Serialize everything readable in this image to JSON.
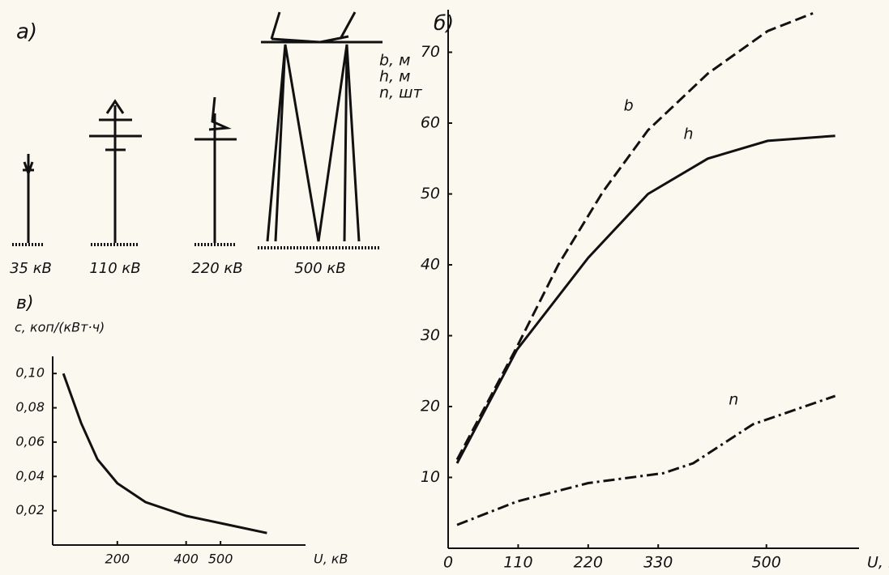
{
  "towers": {
    "label": "а)",
    "voltages": [
      "35 кВ",
      "110 кВ",
      "220 кВ",
      "500 кВ"
    ]
  },
  "chart_data": [
    {
      "type": "line",
      "title": "б)",
      "y_label": [
        "b, м",
        "h, м",
        "n, шт"
      ],
      "x_label": "U, кВ",
      "xlim": [
        0,
        620
      ],
      "xticks": [
        0,
        110,
        220,
        330,
        500
      ],
      "ylim": [
        0,
        76
      ],
      "yticks": [
        10,
        20,
        30,
        40,
        50,
        60,
        70
      ],
      "series": [
        {
          "name": "b",
          "color": "#111111",
          "style": "dashed",
          "x": [
            14,
            108,
            173,
            243,
            314,
            408,
            502,
            573
          ],
          "values": [
            12.5,
            28.4,
            40,
            50.3,
            59,
            67,
            73,
            75.5
          ]
        },
        {
          "name": "h",
          "color": "#111111",
          "style": "solid",
          "x": [
            14,
            108,
            220,
            314,
            408,
            502,
            608
          ],
          "values": [
            12,
            28,
            41,
            50,
            55,
            57.5,
            58.2
          ]
        },
        {
          "name": "n",
          "color": "#111111",
          "style": "dashdot",
          "x": [
            14,
            108,
            220,
            338,
            385,
            479,
            608
          ],
          "values": [
            3.3,
            6.6,
            9.2,
            10.6,
            12,
            17.5,
            21.5
          ]
        }
      ]
    },
    {
      "type": "line",
      "title": "в)",
      "y_label": [
        "c, коп/(кВт·ч)"
      ],
      "x_label": "U, кВ",
      "xlim": [
        12,
        700
      ],
      "xticks": [
        200,
        400,
        500
      ],
      "ylim": [
        0,
        0.11
      ],
      "yticks": [
        {
          "value": 0.02,
          "label": "0,02"
        },
        {
          "value": 0.04,
          "label": "0,04"
        },
        {
          "value": 0.06,
          "label": "0,06"
        },
        {
          "value": 0.08,
          "label": "0,08"
        },
        {
          "value": 0.1,
          "label": "0,10"
        }
      ],
      "series": [
        {
          "color": "#111111",
          "style": "solid",
          "x": [
            43,
            95,
            142,
            200,
            282,
            400,
            518,
            635
          ],
          "values": [
            0.1,
            0.071,
            0.05,
            0.036,
            0.025,
            0.017,
            0.012,
            0.007
          ]
        }
      ]
    }
  ]
}
